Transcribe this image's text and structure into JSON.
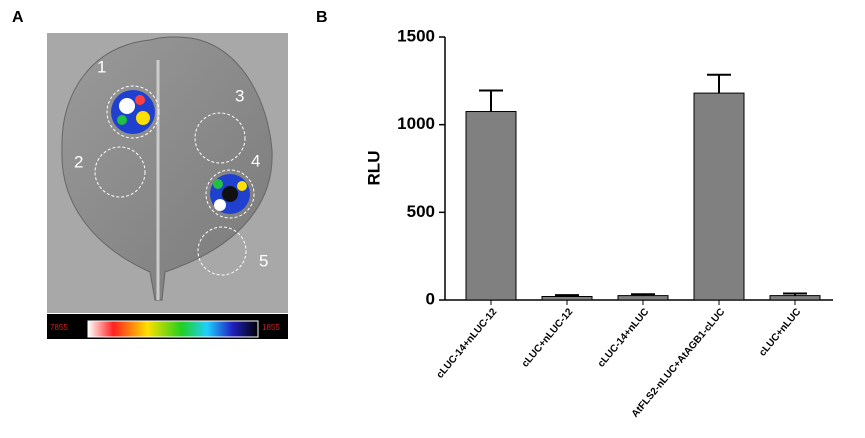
{
  "panel_labels": [
    "A",
    "B"
  ],
  "image": {
    "region_labels": [
      "1",
      "2",
      "3",
      "4",
      "5"
    ],
    "colorbar_labels": [
      "7855",
      "1855"
    ]
  },
  "chart_data": {
    "type": "bar",
    "ylabel": "RLU",
    "categories": [
      "cLUC-14+nLUC-12",
      "cLUC+nLUC-12",
      "cLUC-14+nLUC",
      "AtFLS2-nLUC+AtAGB1-cLUC",
      "cLUC+nLUC"
    ],
    "values": [
      1075,
      20,
      25,
      1180,
      25
    ],
    "errors": [
      120,
      8,
      8,
      105,
      12
    ],
    "color": "#808080",
    "ylim": [
      0,
      1500
    ],
    "yticks": [
      0,
      500,
      1000,
      1500
    ],
    "grid": false
  }
}
